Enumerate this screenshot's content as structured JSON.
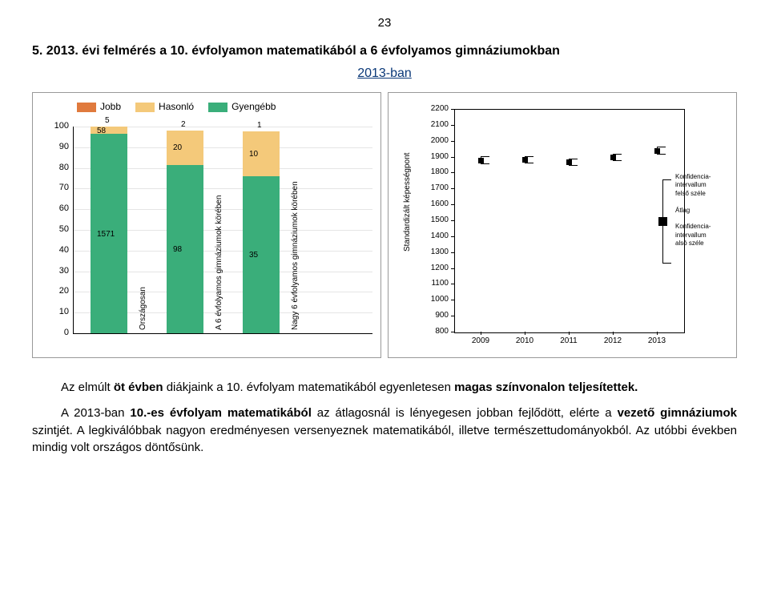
{
  "page_number": "23",
  "heading": "5.    2013. évi felmérés a 10. évfolyamon matematikából a 6 évfolyamos gimnáziumokban",
  "sub_heading": "2013-ban",
  "chart1": {
    "type": "stacked-bar",
    "legend": [
      {
        "label": "Jobb",
        "color": "#e07a3d"
      },
      {
        "label": "Hasonló",
        "color": "#f4c97a"
      },
      {
        "label": "Gyengébb",
        "color": "#3aae7a"
      }
    ],
    "y_ticks": [
      0,
      10,
      20,
      30,
      40,
      50,
      60,
      70,
      80,
      90,
      100
    ],
    "categories": [
      {
        "rot_label": "Országosan",
        "top_label": "5",
        "segments": [
          {
            "value": 96.4,
            "color": "#3aae7a",
            "label": "1571"
          },
          {
            "value": 3.6,
            "color": "#f4c97a",
            "label": "58"
          }
        ]
      },
      {
        "rot_label": "A 6 évfolyamos gimnáziumok körében",
        "top_label": "2",
        "segments": [
          {
            "value": 81.5,
            "color": "#3aae7a",
            "label": "98"
          },
          {
            "value": 16.7,
            "color": "#f4c97a",
            "label": "20"
          }
        ]
      },
      {
        "rot_label": "Nagy 6 évfolyamos gimnáziumok körében",
        "top_label": "1",
        "segments": [
          {
            "value": 76.1,
            "color": "#3aae7a",
            "label": "35"
          },
          {
            "value": 21.7,
            "color": "#f4c97a",
            "label": "10"
          }
        ]
      }
    ],
    "plot_background": "#ffffff",
    "grid_color": "#e5e5e5"
  },
  "chart2": {
    "type": "error-bar",
    "y_label": "Standardizált képességpont",
    "y_ticks": [
      800,
      900,
      1000,
      1100,
      1200,
      1300,
      1400,
      1500,
      1600,
      1700,
      1800,
      1900,
      2000,
      2100,
      2200
    ],
    "ylim": [
      800,
      2200
    ],
    "years": [
      "2009",
      "2010",
      "2011",
      "2012",
      "2013"
    ],
    "points": [
      {
        "x": "2009",
        "y": 1880,
        "low": 1860,
        "high": 1905
      },
      {
        "x": "2010",
        "y": 1885,
        "low": 1865,
        "high": 1905
      },
      {
        "x": "2011",
        "y": 1870,
        "low": 1850,
        "high": 1890
      },
      {
        "x": "2012",
        "y": 1900,
        "low": 1880,
        "high": 1920
      },
      {
        "x": "2013",
        "y": 1940,
        "low": 1920,
        "high": 1965
      }
    ],
    "legend_lines": [
      "Konfidencia-",
      "intervallum",
      "felső széle",
      "",
      "Átlag",
      "",
      "Konfidencia-",
      "intervallum",
      "alsó széle"
    ],
    "legend_point": {
      "y": 1500,
      "low": 1250,
      "high": 1750
    },
    "background": "#ffffff"
  },
  "body": {
    "p1_a": "Az elmúlt ",
    "p1_b": "öt évben",
    "p1_c": " diákjaink a 10. évfolyam matematikából egyenletesen ",
    "p1_d": "magas színvonalon teljesítettek.",
    "p2_a": "A 2013-ban ",
    "p2_b": "10.-es évfolyam matematikából",
    "p2_c": " az átlagosnál is lényegesen jobban fejlődött, elérte a ",
    "p2_d": "vezető gimnáziumok",
    "p2_e": " szintjét. A legkiválóbbak nagyon eredményesen versenyeznek matematikából, illetve természettudományokból. Az utóbbi években mindig volt országos döntősünk."
  }
}
